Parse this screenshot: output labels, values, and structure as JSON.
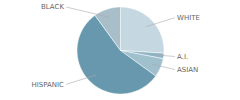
{
  "chart_data": {
    "type": "pie",
    "categories": [
      "WHITE",
      "A.I.",
      "ASIAN",
      "HISPANIC",
      "BLACK"
    ],
    "values": [
      26,
      2,
      7,
      55,
      10
    ],
    "colors": [
      "#c5d8e2",
      "#8fb3c5",
      "#9fc0cc",
      "#6898ae",
      "#a8bfca"
    ]
  }
}
